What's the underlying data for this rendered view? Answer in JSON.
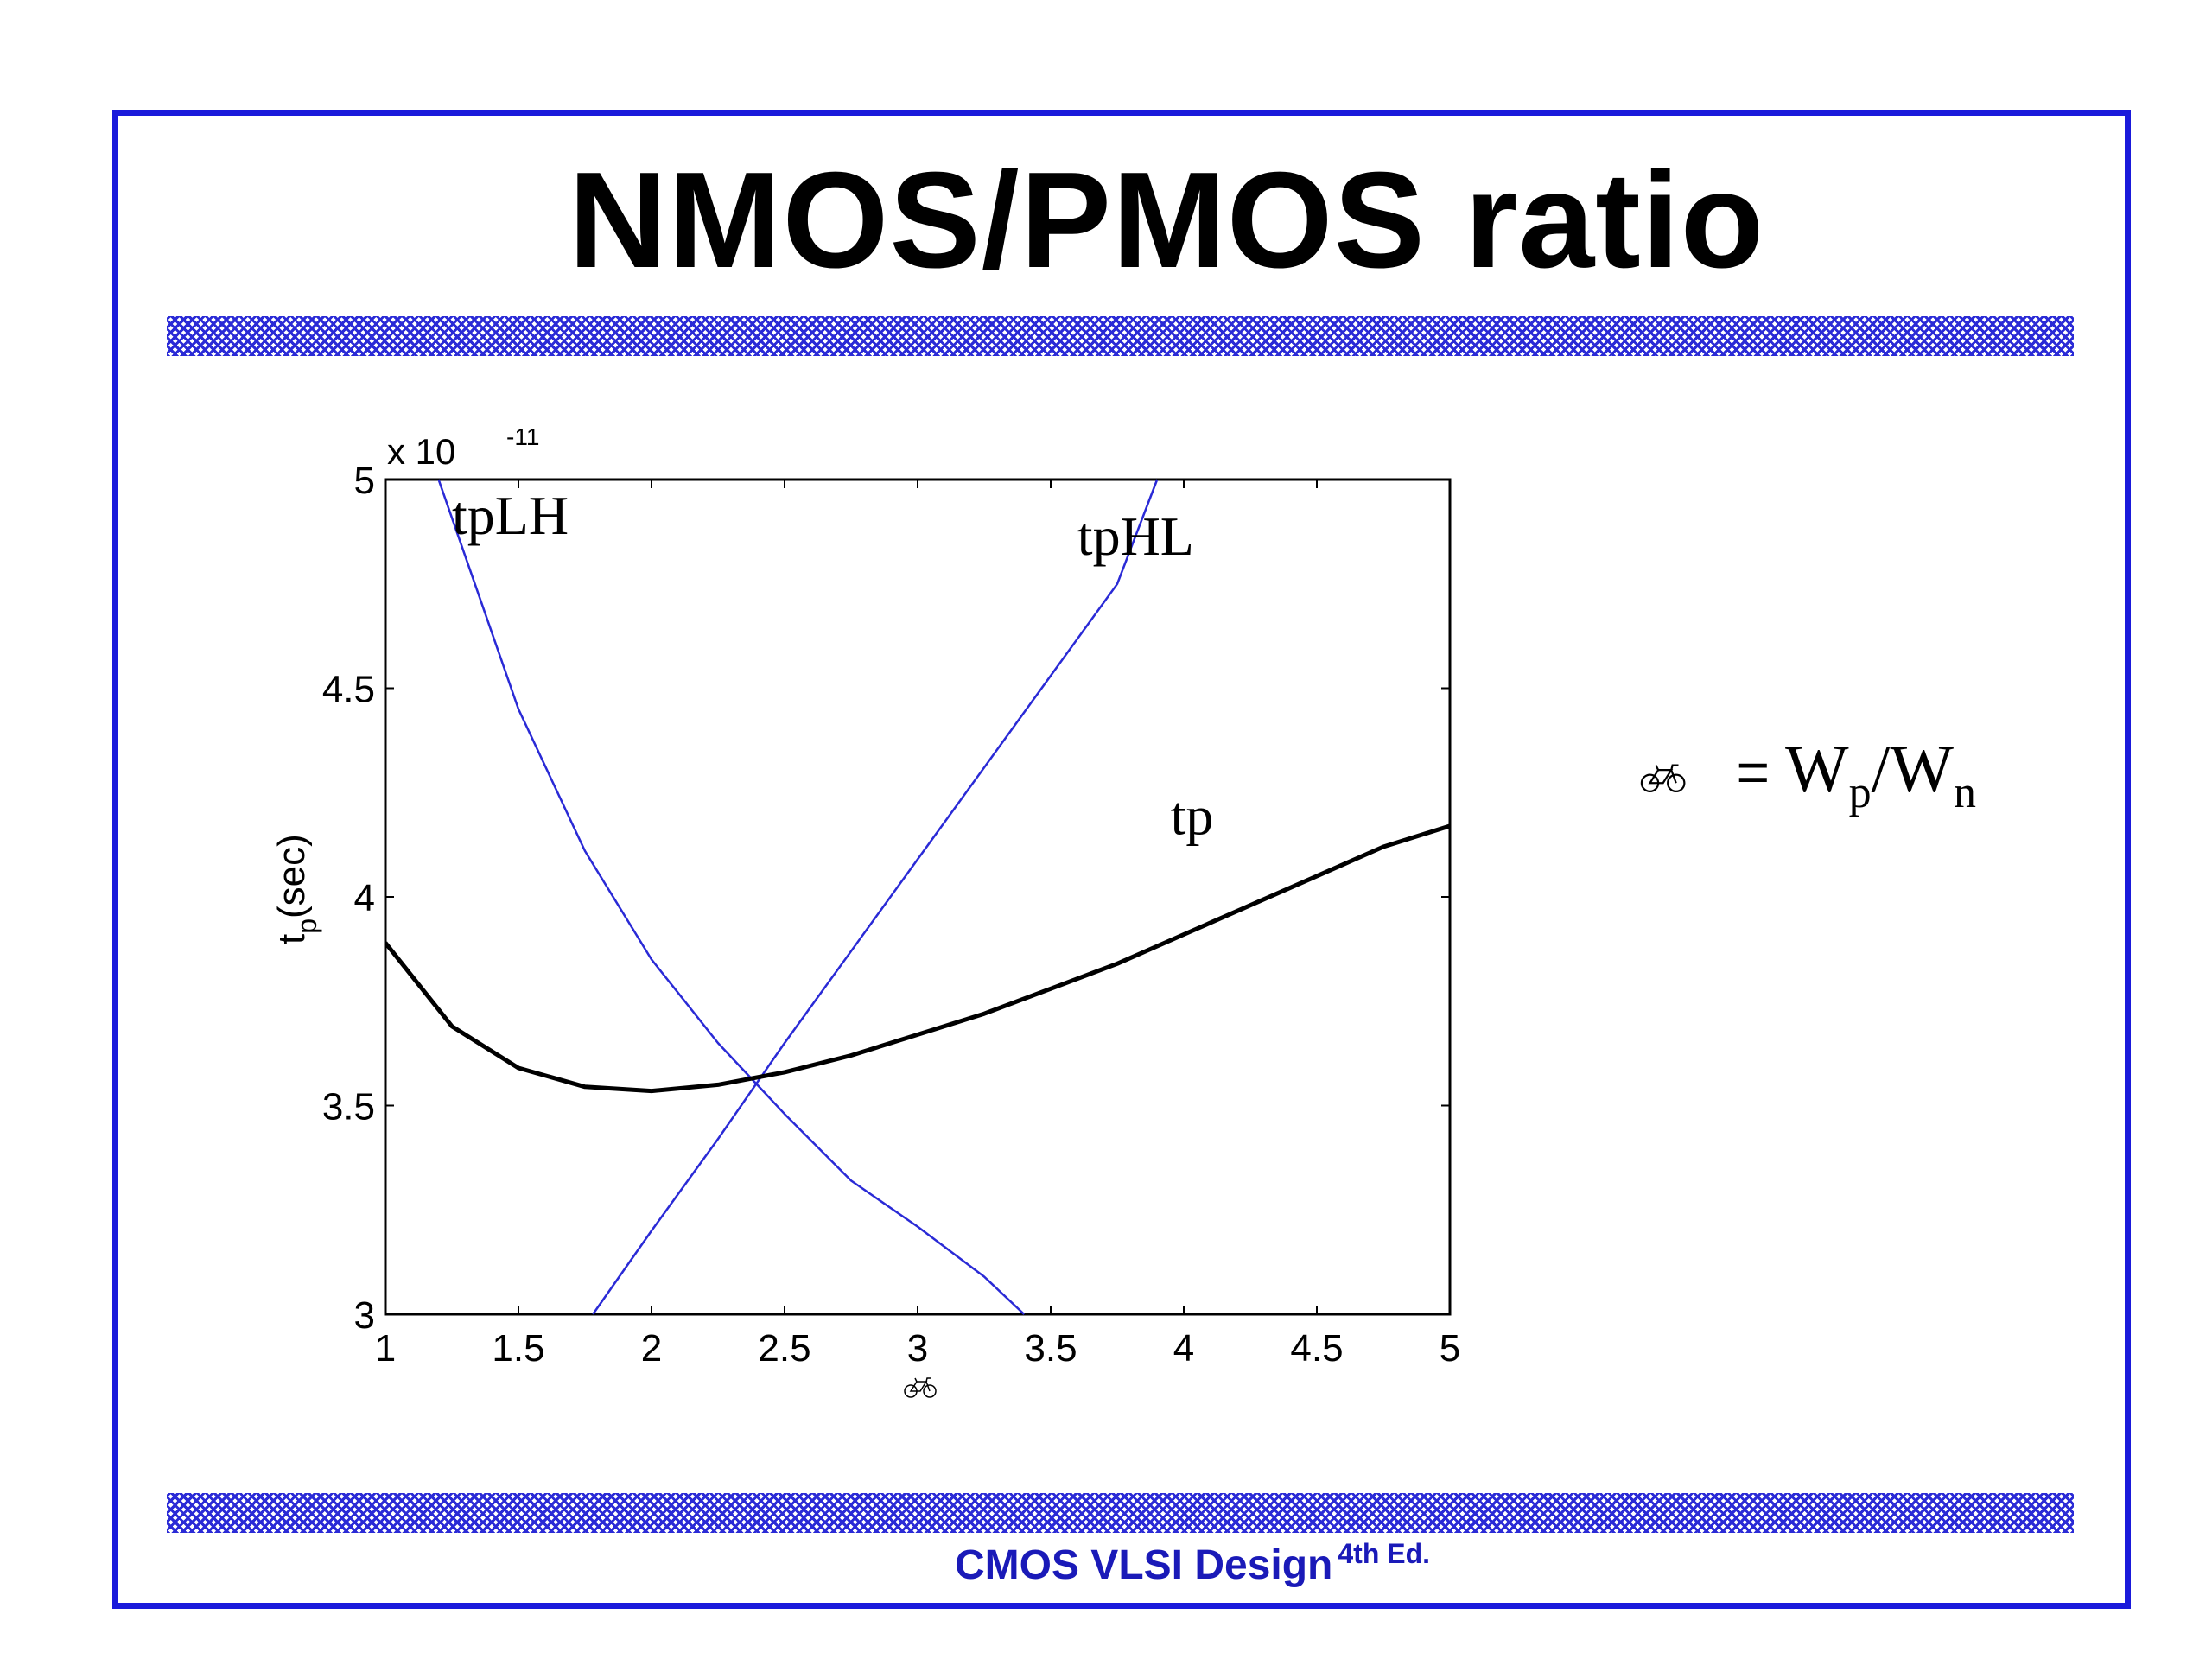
{
  "slide": {
    "title": "NMOS/PMOS ratio",
    "footer_main": "CMOS VLSI Design",
    "footer_sup": "4th Ed.",
    "equation": {
      "lhs_icon": "bicycle-icon",
      "equals": "=",
      "w1": "W",
      "sub1": "p",
      "slash": "/",
      "w2": "W",
      "sub2": "n"
    },
    "colors": {
      "frame": "#1a1adb",
      "band": "#2b2bd6",
      "footer": "#1a1ab8"
    }
  },
  "chart_data": {
    "type": "line",
    "xlabel_icon": "bicycle-icon",
    "ylabel_main": "t",
    "ylabel_sub": "p",
    "ylabel_unit": "(sec)",
    "multiplier_text": "x 10",
    "multiplier_exp": "-11",
    "xlim": [
      1,
      5
    ],
    "ylim": [
      3,
      5
    ],
    "xticks": [
      "1",
      "1.5",
      "2",
      "2.5",
      "3",
      "3.5",
      "4",
      "4.5",
      "5"
    ],
    "yticks": [
      "3",
      "3.5",
      "4",
      "4.5",
      "5"
    ],
    "grid": false,
    "series": [
      {
        "name": "tpLH",
        "color": "#2a2ad6",
        "x": [
          1.2,
          1.5,
          1.75,
          2.0,
          2.25,
          2.5,
          2.75,
          3.0,
          3.25,
          3.4
        ],
        "y": [
          5.0,
          4.45,
          4.11,
          3.85,
          3.65,
          3.48,
          3.32,
          3.21,
          3.09,
          3.0
        ]
      },
      {
        "name": "tpHL",
        "color": "#2a2ad6",
        "x": [
          1.78,
          2.0,
          2.25,
          2.5,
          2.75,
          3.0,
          3.25,
          3.5,
          3.75,
          3.9
        ],
        "y": [
          3.0,
          3.2,
          3.42,
          3.65,
          3.87,
          4.09,
          4.31,
          4.53,
          4.75,
          5.0
        ]
      },
      {
        "name": "tp",
        "color": "#000000",
        "x": [
          1.0,
          1.25,
          1.5,
          1.75,
          2.0,
          2.25,
          2.5,
          2.75,
          3.0,
          3.25,
          3.5,
          3.75,
          4.0,
          4.25,
          4.5,
          4.75,
          5.0
        ],
        "y": [
          3.89,
          3.69,
          3.59,
          3.545,
          3.535,
          3.55,
          3.58,
          3.62,
          3.67,
          3.72,
          3.78,
          3.84,
          3.91,
          3.98,
          4.05,
          4.12,
          4.17
        ]
      }
    ],
    "annotations": [
      {
        "text": "tpLH",
        "x": 1.25,
        "y": 4.87
      },
      {
        "text": "tpHL",
        "x": 3.6,
        "y": 4.82
      },
      {
        "text": "tp",
        "x": 3.95,
        "y": 4.15
      }
    ]
  }
}
